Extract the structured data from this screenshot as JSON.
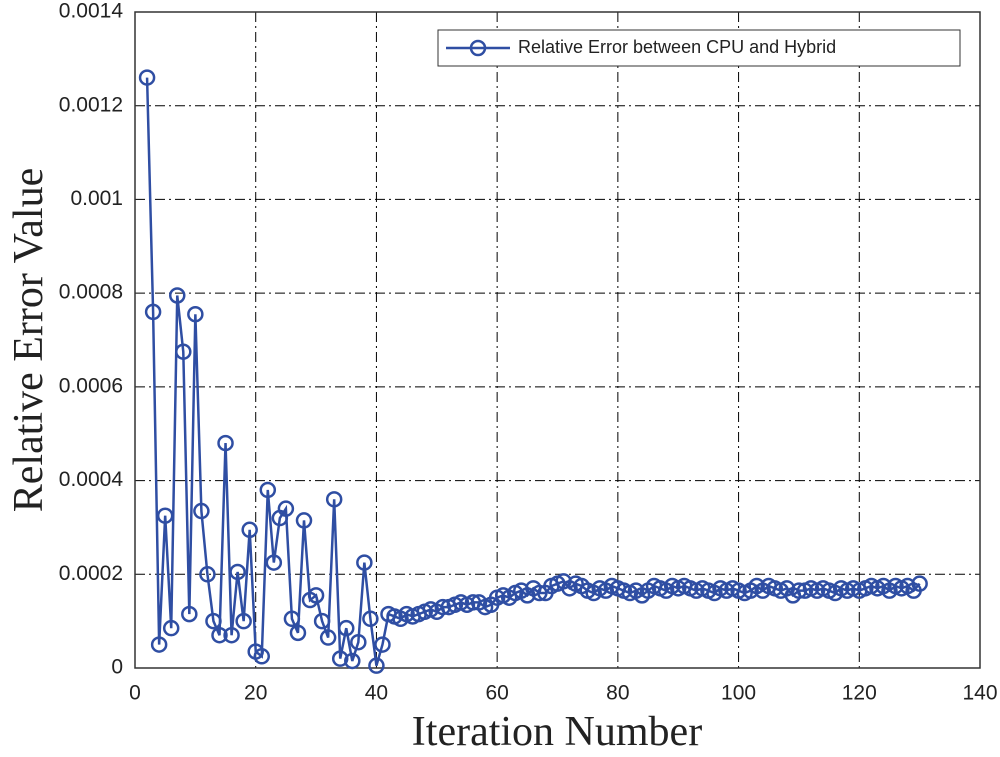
{
  "chart_data": {
    "type": "line",
    "xlabel": "Iteration Number",
    "ylabel": "Relative Error Value",
    "x": [
      2,
      3,
      4,
      5,
      6,
      7,
      8,
      9,
      10,
      11,
      12,
      13,
      14,
      15,
      16,
      17,
      18,
      19,
      20,
      21,
      22,
      23,
      24,
      25,
      26,
      27,
      28,
      29,
      30,
      31,
      32,
      33,
      34,
      35,
      36,
      37,
      38,
      39,
      40,
      41,
      42,
      43,
      44,
      45,
      46,
      47,
      48,
      49,
      50,
      51,
      52,
      53,
      54,
      55,
      56,
      57,
      58,
      59,
      60,
      61,
      62,
      63,
      64,
      65,
      66,
      67,
      68,
      69,
      70,
      71,
      72,
      73,
      74,
      75,
      76,
      77,
      78,
      79,
      80,
      81,
      82,
      83,
      84,
      85,
      86,
      87,
      88,
      89,
      90,
      91,
      92,
      93,
      94,
      95,
      96,
      97,
      98,
      99,
      100,
      101,
      102,
      103,
      104,
      105,
      106,
      107,
      108,
      109,
      110,
      111,
      112,
      113,
      114,
      115,
      116,
      117,
      118,
      119,
      120,
      121,
      122,
      123,
      124,
      125,
      126,
      127,
      128,
      129,
      130
    ],
    "series": [
      {
        "name": "Relative Error between CPU and Hybrid",
        "color": "#2f4ea3",
        "values": [
          0.00126,
          0.00076,
          5e-05,
          0.000325,
          8.5e-05,
          0.000795,
          0.000675,
          0.000115,
          0.000755,
          0.000335,
          0.0002,
          0.0001,
          7e-05,
          0.00048,
          7e-05,
          0.000205,
          0.0001,
          0.000295,
          3.5e-05,
          2.5e-05,
          0.00038,
          0.000225,
          0.00032,
          0.00034,
          0.000105,
          7.5e-05,
          0.000315,
          0.000145,
          0.000155,
          0.0001,
          6.5e-05,
          0.00036,
          2e-05,
          8.5e-05,
          1.5e-05,
          5.5e-05,
          0.000225,
          0.000105,
          5e-06,
          5e-05,
          0.000115,
          0.00011,
          0.000105,
          0.000115,
          0.00011,
          0.000115,
          0.00012,
          0.000125,
          0.00012,
          0.00013,
          0.00013,
          0.000135,
          0.00014,
          0.000135,
          0.00014,
          0.00014,
          0.00013,
          0.000135,
          0.00015,
          0.000155,
          0.00015,
          0.00016,
          0.000165,
          0.000155,
          0.00017,
          0.00016,
          0.00016,
          0.000175,
          0.00018,
          0.000185,
          0.00017,
          0.00018,
          0.000175,
          0.000165,
          0.00016,
          0.00017,
          0.000165,
          0.000175,
          0.00017,
          0.000165,
          0.00016,
          0.000165,
          0.000155,
          0.000165,
          0.000175,
          0.00017,
          0.000165,
          0.000175,
          0.00017,
          0.000175,
          0.00017,
          0.000165,
          0.00017,
          0.000165,
          0.00016,
          0.00017,
          0.000165,
          0.00017,
          0.000165,
          0.00016,
          0.000165,
          0.000175,
          0.000165,
          0.000175,
          0.00017,
          0.000165,
          0.00017,
          0.000155,
          0.000165,
          0.000165,
          0.00017,
          0.000165,
          0.00017,
          0.000165,
          0.00016,
          0.00017,
          0.000165,
          0.00017,
          0.000165,
          0.00017,
          0.000175,
          0.00017,
          0.000175,
          0.000165,
          0.000175,
          0.00017,
          0.000175,
          0.000165,
          0.00018
        ]
      }
    ],
    "xlim": [
      0,
      140
    ],
    "xticks": [
      0,
      20,
      40,
      60,
      80,
      100,
      120,
      140
    ],
    "ylim": [
      0,
      0.0014
    ],
    "yticks": [
      0,
      0.0002,
      0.0004,
      0.0006,
      0.0008,
      0.001,
      0.0012,
      0.0014
    ],
    "grid": true,
    "legend": "upper right"
  }
}
